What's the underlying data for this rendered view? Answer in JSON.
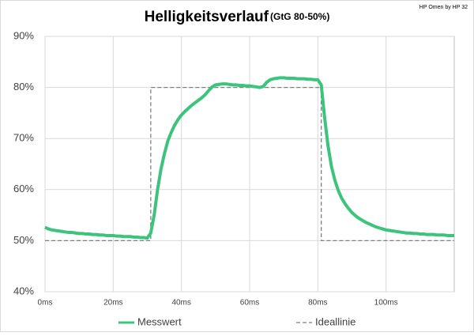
{
  "chart_data": {
    "type": "line",
    "title": "Helligkeitsverlauf",
    "subtitle": "(GtG 80-50%)",
    "annotation": "HP Omen by HP 32",
    "xlim": [
      0,
      120
    ],
    "xticks": [
      {
        "value": 0,
        "label": "0ms"
      },
      {
        "value": 20,
        "label": "20ms"
      },
      {
        "value": 40,
        "label": "40ms"
      },
      {
        "value": 60,
        "label": "60ms"
      },
      {
        "value": 80,
        "label": "80ms"
      },
      {
        "value": 100,
        "label": "100ms"
      }
    ],
    "ylim": [
      40,
      90
    ],
    "yticks": [
      {
        "value": 40,
        "label": "40%"
      },
      {
        "value": 50,
        "label": "50%"
      },
      {
        "value": 60,
        "label": "60%"
      },
      {
        "value": 70,
        "label": "70%"
      },
      {
        "value": 80,
        "label": "80%"
      },
      {
        "value": 90,
        "label": "90%"
      }
    ],
    "grid": true,
    "legend": "bottom",
    "series": [
      {
        "name": "Messwert",
        "color": "#3cc47c",
        "style": "solid",
        "x": [
          0,
          1,
          2,
          3,
          4,
          5,
          6,
          7,
          8,
          9,
          10,
          11,
          12,
          13,
          14,
          15,
          16,
          17,
          18,
          19,
          20,
          21,
          22,
          23,
          24,
          25,
          26,
          27,
          28,
          29,
          30,
          31,
          32,
          33,
          34,
          35,
          36,
          37,
          38,
          39,
          40,
          41,
          42,
          43,
          44,
          45,
          46,
          47,
          48,
          49,
          50,
          51,
          52,
          53,
          54,
          55,
          56,
          57,
          58,
          59,
          60,
          61,
          62,
          63,
          64,
          65,
          66,
          67,
          68,
          69,
          70,
          71,
          72,
          73,
          74,
          75,
          76,
          77,
          78,
          79,
          80,
          81,
          82,
          83,
          84,
          85,
          86,
          87,
          88,
          89,
          90,
          91,
          92,
          93,
          94,
          95,
          96,
          97,
          98,
          99,
          100,
          101,
          102,
          103,
          104,
          105,
          106,
          107,
          108,
          109,
          110,
          111,
          112,
          113,
          114,
          115,
          116,
          117,
          118,
          119,
          120
        ],
        "values": [
          52.6,
          52.3,
          52.1,
          52.0,
          51.9,
          51.8,
          51.7,
          51.6,
          51.6,
          51.5,
          51.4,
          51.4,
          51.3,
          51.3,
          51.2,
          51.2,
          51.1,
          51.1,
          51.0,
          51.0,
          51.0,
          50.9,
          50.9,
          50.8,
          50.8,
          50.8,
          50.7,
          50.7,
          50.6,
          50.6,
          50.5,
          51.5,
          55,
          60,
          64,
          67,
          69.5,
          71.2,
          72.6,
          73.7,
          74.6,
          75.3,
          75.9,
          76.5,
          77,
          77.5,
          78,
          78.6,
          79.4,
          80.1,
          80.5,
          80.6,
          80.7,
          80.7,
          80.6,
          80.5,
          80.5,
          80.4,
          80.4,
          80.3,
          80.3,
          80.2,
          80.1,
          80.0,
          80.2,
          81.0,
          81.5,
          81.7,
          81.8,
          81.9,
          81.9,
          81.8,
          81.8,
          81.8,
          81.7,
          81.7,
          81.7,
          81.6,
          81.6,
          81.5,
          81.5,
          80.5,
          74,
          68.5,
          64.5,
          61.8,
          59.8,
          58.3,
          57.2,
          56.3,
          55.5,
          54.9,
          54.4,
          54.0,
          53.6,
          53.3,
          53.0,
          52.7,
          52.5,
          52.3,
          52.1,
          52.0,
          51.9,
          51.8,
          51.7,
          51.6,
          51.5,
          51.5,
          51.4,
          51.4,
          51.3,
          51.3,
          51.2,
          51.2,
          51.2,
          51.1,
          51.1,
          51.1,
          51.0,
          51.0,
          51.0
        ]
      },
      {
        "name": "Ideallinie",
        "color": "#808080",
        "style": "dashed",
        "x": [
          0,
          31,
          31,
          81,
          81,
          120
        ],
        "values": [
          50,
          50,
          80,
          80,
          50,
          50
        ]
      }
    ]
  }
}
